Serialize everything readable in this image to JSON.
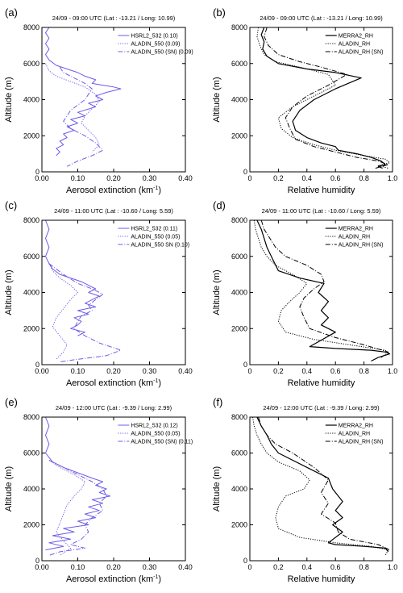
{
  "chart_data": [
    {
      "panel_label": "(a)",
      "type": "line",
      "title": "24/09 - 09:00 UTC (Lat : -13.21 / Long: 10.99)",
      "xlabel": "Aerosol extinction (km",
      "xlabel_sup": "-1",
      "xlabel_close": ")",
      "ylabel": "Altitude (m)",
      "xlim": [
        0,
        0.4
      ],
      "ylim": [
        0,
        8000
      ],
      "xticks": [
        "0.00",
        "0.10",
        "0.20",
        "0.30",
        "0.40"
      ],
      "yticks": [
        "0",
        "2000",
        "4000",
        "6000",
        "8000"
      ],
      "legend_position": "top-right",
      "series": [
        {
          "name": "HSRL2_532 (0.10)",
          "color": "#6e5ce6",
          "dash": "solid",
          "width": 1,
          "x": [
            0.02,
            0.01,
            0.02,
            0.01,
            0.02,
            0.01,
            0.02,
            0.04,
            0.07,
            0.1,
            0.12,
            0.15,
            0.14,
            0.17,
            0.2,
            0.22,
            0.18,
            0.15,
            0.17,
            0.13,
            0.15,
            0.1,
            0.12,
            0.08,
            0.1,
            0.07,
            0.09,
            0.06,
            0.07,
            0.05,
            0.06,
            0.04,
            0.05,
            0.04
          ],
          "y": [
            8000,
            7700,
            7400,
            7100,
            6800,
            6500,
            6200,
            5900,
            5700,
            5500,
            5300,
            5100,
            4900,
            4800,
            4700,
            4600,
            4400,
            4200,
            4000,
            3800,
            3600,
            3300,
            3100,
            2900,
            2700,
            2500,
            2300,
            2100,
            1900,
            1700,
            1500,
            1300,
            1100,
            900
          ]
        },
        {
          "name": "ALADIN_550 (0.09)",
          "color": "#6e5ce6",
          "dash": "dotted",
          "width": 1,
          "x": [
            0.01,
            0.02,
            0.04,
            0.08,
            0.12,
            0.15,
            0.16,
            0.14,
            0.12,
            0.11,
            0.13,
            0.15,
            0.16,
            0.14
          ],
          "y": [
            6000,
            5600,
            5300,
            5000,
            4700,
            4300,
            3900,
            3500,
            3100,
            2700,
            2300,
            1900,
            1500,
            1100
          ]
        },
        {
          "name": "ALADIN_550 (SN) (0.09)",
          "color": "#6e5ce6",
          "dash": "dashdot",
          "width": 1,
          "x": [
            0.05,
            0.06,
            0.09,
            0.12,
            0.14,
            0.13,
            0.12,
            0.1,
            0.08,
            0.07,
            0.06,
            0.08,
            0.12,
            0.15,
            0.17,
            0.14,
            0.1,
            0.07
          ],
          "y": [
            5800,
            5500,
            5200,
            4900,
            4600,
            4300,
            4000,
            3700,
            3400,
            3100,
            2800,
            2400,
            2000,
            1600,
            1200,
            900,
            600,
            300
          ]
        }
      ]
    },
    {
      "panel_label": "(b)",
      "type": "line",
      "title": "24/09 - 09:00 UTC (Lat : -13.21 / Long: 10.99)",
      "xlabel": "Relative humidity",
      "ylabel": "Altitude (m)",
      "xlim": [
        0,
        1
      ],
      "ylim": [
        0,
        8000
      ],
      "xticks": [
        "0",
        "0.2",
        "0.4",
        "0.6",
        "0.8",
        "1.0"
      ],
      "yticks": [
        "0",
        "2000",
        "4000",
        "6000",
        "8000"
      ],
      "legend_position": "top-right",
      "series": [
        {
          "name": "MERRA2_RH",
          "color": "#000000",
          "dash": "solid",
          "width": 1.2,
          "x": [
            0.1,
            0.08,
            0.1,
            0.09,
            0.12,
            0.2,
            0.4,
            0.6,
            0.78,
            0.6,
            0.45,
            0.35,
            0.3,
            0.32,
            0.4,
            0.5,
            0.6,
            0.62,
            0.75,
            0.85,
            0.92,
            0.95,
            0.9,
            0.93
          ],
          "y": [
            8000,
            7600,
            7200,
            6800,
            6400,
            6000,
            5700,
            5500,
            5200,
            4600,
            4000,
            3400,
            2800,
            2300,
            1900,
            1600,
            1400,
            1200,
            1000,
            800,
            600,
            400,
            300,
            200
          ]
        },
        {
          "name": "ALADIN_RH",
          "color": "#000000",
          "dash": "dotted",
          "width": 1,
          "x": [
            0.06,
            0.05,
            0.07,
            0.1,
            0.18,
            0.35,
            0.55,
            0.6,
            0.45,
            0.3,
            0.2,
            0.22,
            0.3,
            0.45,
            0.6,
            0.8,
            0.95,
            0.98,
            0.9,
            0.97
          ],
          "y": [
            8000,
            7500,
            7000,
            6500,
            6100,
            5800,
            5400,
            4800,
            4200,
            3600,
            3000,
            2400,
            1900,
            1500,
            1200,
            900,
            700,
            500,
            350,
            200
          ]
        },
        {
          "name": "ALADIN_RH (SN)",
          "color": "#000000",
          "dash": "dashdot",
          "width": 1,
          "x": [
            0.12,
            0.1,
            0.13,
            0.2,
            0.35,
            0.5,
            0.68,
            0.55,
            0.4,
            0.3,
            0.25,
            0.28,
            0.32,
            0.45,
            0.6,
            0.75,
            0.9,
            0.97,
            0.88
          ],
          "y": [
            8000,
            7500,
            7000,
            6500,
            6100,
            5800,
            5400,
            4800,
            4200,
            3600,
            3000,
            2400,
            1800,
            1400,
            1100,
            800,
            600,
            400,
            200
          ]
        }
      ]
    },
    {
      "panel_label": "(c)",
      "type": "line",
      "title": "24/09 - 11:00 UTC (Lat : -10.60 / Long: 5.59)",
      "xlabel": "Aerosol extinction (km",
      "xlabel_sup": "-1",
      "xlabel_close": ")",
      "ylabel": "Altitude (m)",
      "xlim": [
        0,
        0.4
      ],
      "ylim": [
        0,
        8000
      ],
      "xticks": [
        "0.00",
        "0.10",
        "0.20",
        "0.30",
        "0.40"
      ],
      "yticks": [
        "0",
        "2000",
        "4000",
        "6000",
        "8000"
      ],
      "legend_position": "top-right",
      "series": [
        {
          "name": "HSRL2_532 (0.11)",
          "color": "#6e5ce6",
          "dash": "solid",
          "width": 1,
          "x": [
            0.01,
            0.02,
            0.01,
            0.02,
            0.01,
            0.02,
            0.03,
            0.05,
            0.08,
            0.11,
            0.13,
            0.15,
            0.13,
            0.16,
            0.14,
            0.12,
            0.15,
            0.1,
            0.13,
            0.09,
            0.11,
            0.1,
            0.08,
            0.12,
            0.1
          ],
          "y": [
            8000,
            7500,
            7000,
            6500,
            6000,
            5600,
            5300,
            5000,
            4800,
            4600,
            4400,
            4200,
            4000,
            3800,
            3600,
            3400,
            3200,
            3000,
            2800,
            2600,
            2400,
            2200,
            2000,
            1800,
            1600
          ]
        },
        {
          "name": "ALADIN_550 (0.05)",
          "color": "#6e5ce6",
          "dash": "dotted",
          "width": 1,
          "x": [
            0.02,
            0.03,
            0.05,
            0.08,
            0.1,
            0.08,
            0.06,
            0.04,
            0.03,
            0.05,
            0.07,
            0.06,
            0.04
          ],
          "y": [
            5600,
            5200,
            4800,
            4400,
            4000,
            3600,
            3100,
            2600,
            2100,
            1600,
            1100,
            700,
            300
          ]
        },
        {
          "name": "ALADIN_550 SN (0.10)",
          "color": "#6e5ce6",
          "dash": "dashdot",
          "width": 1,
          "x": [
            0.02,
            0.06,
            0.1,
            0.14,
            0.17,
            0.15,
            0.13,
            0.14,
            0.11,
            0.1,
            0.09,
            0.12,
            0.16,
            0.22,
            0.18,
            0.1,
            0.05
          ],
          "y": [
            5600,
            5000,
            4500,
            4200,
            3900,
            3600,
            3300,
            3000,
            2700,
            2400,
            2000,
            1600,
            1200,
            800,
            500,
            300,
            150
          ]
        }
      ]
    },
    {
      "panel_label": "(d)",
      "type": "line",
      "title": "24/09 - 11:00 UTC (Lat : -10.60 / Long: 5.59)",
      "xlabel": "Relative humidity",
      "ylabel": "Altitude (m)",
      "xlim": [
        0,
        1
      ],
      "ylim": [
        0,
        8000
      ],
      "xticks": [
        "0",
        "0.2",
        "0.4",
        "0.6",
        "0.8",
        "1.0"
      ],
      "yticks": [
        "0",
        "2000",
        "4000",
        "6000",
        "8000"
      ],
      "legend_position": "top-right",
      "series": [
        {
          "name": "MERRA2_RH",
          "color": "#000000",
          "dash": "solid",
          "width": 1.2,
          "x": [
            0.05,
            0.08,
            0.1,
            0.12,
            0.15,
            0.2,
            0.35,
            0.52,
            0.48,
            0.55,
            0.5,
            0.55,
            0.5,
            0.6,
            0.42,
            0.6,
            0.85,
            0.95,
            0.98,
            0.9,
            0.85
          ],
          "y": [
            8000,
            7500,
            7000,
            6500,
            6000,
            5200,
            4800,
            4500,
            4000,
            3500,
            3000,
            2600,
            2200,
            1800,
            1000,
            900,
            800,
            700,
            600,
            400,
            200
          ]
        },
        {
          "name": "ALADIN_RH",
          "color": "#000000",
          "dash": "dotted",
          "width": 1,
          "x": [
            0.03,
            0.04,
            0.06,
            0.08,
            0.12,
            0.18,
            0.3,
            0.4,
            0.35,
            0.28,
            0.22,
            0.2,
            0.25,
            0.45,
            0.7,
            0.95,
            0.98
          ],
          "y": [
            8000,
            7500,
            7000,
            6500,
            6000,
            5500,
            5000,
            4500,
            4000,
            3500,
            3000,
            2400,
            1800,
            1400,
            1100,
            800,
            500
          ]
        },
        {
          "name": "ALADIN_RH (SN)",
          "color": "#000000",
          "dash": "dashdot",
          "width": 1,
          "x": [
            0.08,
            0.1,
            0.14,
            0.18,
            0.25,
            0.4,
            0.5,
            0.52,
            0.45,
            0.38,
            0.35,
            0.38,
            0.42,
            0.6,
            0.8,
            0.97,
            0.92
          ],
          "y": [
            8000,
            7500,
            7000,
            6500,
            6000,
            5500,
            5000,
            4600,
            4200,
            3700,
            3200,
            2600,
            2000,
            1500,
            1100,
            700,
            400
          ]
        }
      ]
    },
    {
      "panel_label": "(e)",
      "type": "line",
      "title": "24/09 - 12:00 UTC (Lat : -9.39 / Long: 2.99)",
      "xlabel": "Aerosol extinction (km",
      "xlabel_sup": "-1",
      "xlabel_close": ")",
      "ylabel": "Altitude (m)",
      "xlim": [
        0,
        0.4
      ],
      "ylim": [
        0,
        8000
      ],
      "xticks": [
        "0.00",
        "0.10",
        "0.20",
        "0.30",
        "0.40"
      ],
      "yticks": [
        "0",
        "2000",
        "4000",
        "6000",
        "8000"
      ],
      "legend_position": "top-right",
      "series": [
        {
          "name": "HSRL2_532 (0.12)",
          "color": "#6e5ce6",
          "dash": "solid",
          "width": 1,
          "x": [
            0.01,
            0.02,
            0.01,
            0.02,
            0.01,
            0.03,
            0.06,
            0.1,
            0.14,
            0.17,
            0.15,
            0.18,
            0.16,
            0.19,
            0.14,
            0.17,
            0.13,
            0.16,
            0.12,
            0.15,
            0.1,
            0.13,
            0.06,
            0.09,
            0.03,
            0.08,
            0.02,
            0.06,
            0.01
          ],
          "y": [
            8000,
            7500,
            7000,
            6500,
            6000,
            5500,
            5200,
            4900,
            4600,
            4400,
            4200,
            4000,
            3800,
            3600,
            3400,
            3200,
            3000,
            2800,
            2600,
            2400,
            2200,
            2000,
            1800,
            1600,
            1400,
            1200,
            1000,
            800,
            600
          ]
        },
        {
          "name": "ALADIN_550 (0.05)",
          "color": "#6e5ce6",
          "dash": "dotted",
          "width": 1,
          "x": [
            0.02,
            0.05,
            0.09,
            0.12,
            0.11,
            0.09,
            0.07,
            0.06,
            0.05,
            0.04,
            0.06,
            0.08,
            0.05
          ],
          "y": [
            5600,
            5200,
            4800,
            4400,
            4000,
            3600,
            3100,
            2600,
            2100,
            1600,
            1100,
            700,
            300
          ]
        },
        {
          "name": "ALADIN_550 (SN) (0.11)",
          "color": "#6e5ce6",
          "dash": "dashdot",
          "width": 1,
          "x": [
            0.02,
            0.06,
            0.1,
            0.14,
            0.17,
            0.18,
            0.16,
            0.17,
            0.14,
            0.12,
            0.13,
            0.11,
            0.08,
            0.12,
            0.05,
            0.02
          ],
          "y": [
            5600,
            5200,
            4800,
            4400,
            4000,
            3600,
            3200,
            2800,
            2400,
            2000,
            1600,
            1200,
            900,
            700,
            500,
            300
          ]
        }
      ]
    },
    {
      "panel_label": "(f)",
      "type": "line",
      "title": "24/09 - 12:00 UTC (Lat : -9.39 / Long: 2.99)",
      "xlabel": "Relative humidity",
      "ylabel": "Altitude (m)",
      "xlim": [
        0,
        1
      ],
      "ylim": [
        0,
        8000
      ],
      "xticks": [
        "0",
        "0.2",
        "0.4",
        "0.6",
        "0.8",
        "1.0"
      ],
      "yticks": [
        "0",
        "2000",
        "4000",
        "6000",
        "8000"
      ],
      "legend_position": "top-right",
      "series": [
        {
          "name": "MERRA2_RH",
          "color": "#000000",
          "dash": "solid",
          "width": 1.2,
          "x": [
            0.05,
            0.08,
            0.12,
            0.15,
            0.2,
            0.4,
            0.55,
            0.58,
            0.65,
            0.6,
            0.65,
            0.58,
            0.65,
            0.55,
            0.6,
            0.8,
            0.95,
            0.97
          ],
          "y": [
            8000,
            7500,
            7000,
            6500,
            6000,
            5200,
            4600,
            4000,
            3300,
            2800,
            2400,
            2000,
            1600,
            1000,
            900,
            800,
            700,
            500
          ]
        },
        {
          "name": "ALADIN_RH",
          "color": "#000000",
          "dash": "dotted",
          "width": 1,
          "x": [
            0.02,
            0.03,
            0.05,
            0.08,
            0.12,
            0.2,
            0.35,
            0.42,
            0.38,
            0.25,
            0.2,
            0.18,
            0.2,
            0.35,
            0.6,
            0.85,
            0.97,
            0.95
          ],
          "y": [
            8000,
            7500,
            7000,
            6500,
            6000,
            5500,
            5000,
            4500,
            4000,
            3600,
            3000,
            2400,
            1800,
            1300,
            1000,
            800,
            600,
            300
          ]
        },
        {
          "name": "ALADIN_RH (SN)",
          "color": "#000000",
          "dash": "dashdot",
          "width": 1,
          "x": [
            0.06,
            0.08,
            0.12,
            0.18,
            0.3,
            0.45,
            0.55,
            0.5,
            0.55,
            0.5,
            0.6,
            0.62,
            0.7,
            0.9,
            0.98
          ],
          "y": [
            8000,
            7500,
            7000,
            6500,
            6000,
            5200,
            4500,
            3800,
            3200,
            2600,
            2100,
            1600,
            1200,
            900,
            600
          ]
        }
      ]
    }
  ]
}
